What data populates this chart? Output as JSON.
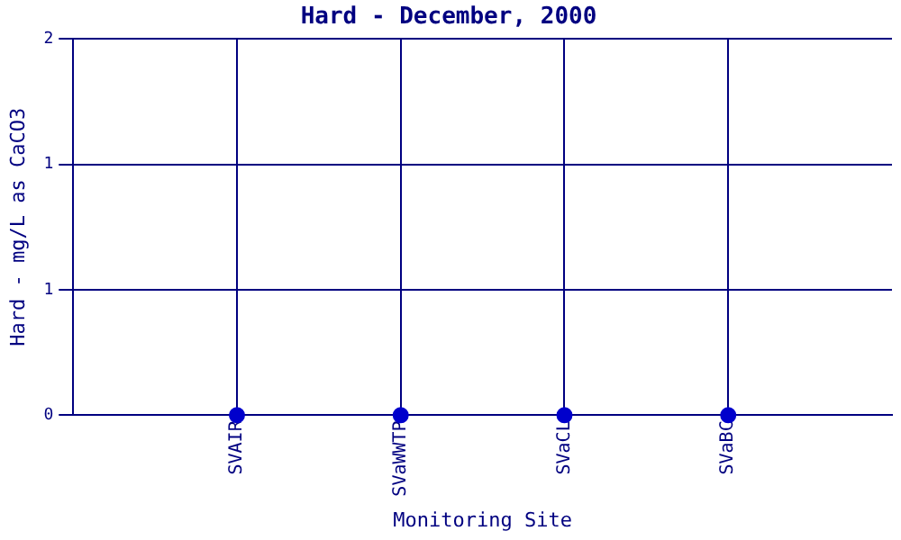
{
  "chart_data": {
    "type": "scatter",
    "title": "Hard - December, 2000",
    "xlabel": "Monitoring Site",
    "ylabel": "Hard - mg/L as CaCO3",
    "categories": [
      "SVAIR",
      "SVaWWTP",
      "SVaCL",
      "SVaBC"
    ],
    "series": [
      {
        "color": "#0000cc",
        "values": [
          0,
          0,
          0,
          0
        ]
      }
    ],
    "ylim": [
      0,
      2
    ],
    "yticks": [
      0,
      {
        "value": 0.667,
        "label": "1"
      },
      {
        "value": 1.333,
        "label": "1"
      },
      2
    ],
    "grid": true,
    "marker": "circle",
    "legend": false
  }
}
